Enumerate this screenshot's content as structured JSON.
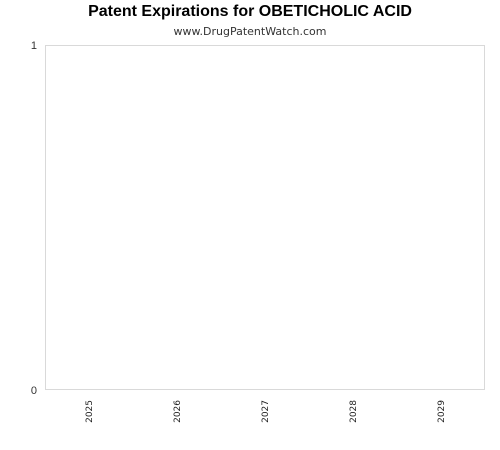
{
  "chart_data": {
    "type": "bar",
    "title": "Patent Expirations for OBETICHOLIC ACID",
    "subtitle": "www.DrugPatentWatch.com",
    "categories": [
      "2025",
      "2026",
      "2027",
      "2028",
      "2029"
    ],
    "values": [
      0,
      0,
      0,
      0,
      0
    ],
    "ylim": [
      0,
      1
    ],
    "y_ticks": [
      "0",
      "1"
    ],
    "grid": false,
    "legend": "none",
    "colors": {
      "frame": "#d9d9d9",
      "text": "#333333",
      "bar": "#4572a7"
    }
  }
}
